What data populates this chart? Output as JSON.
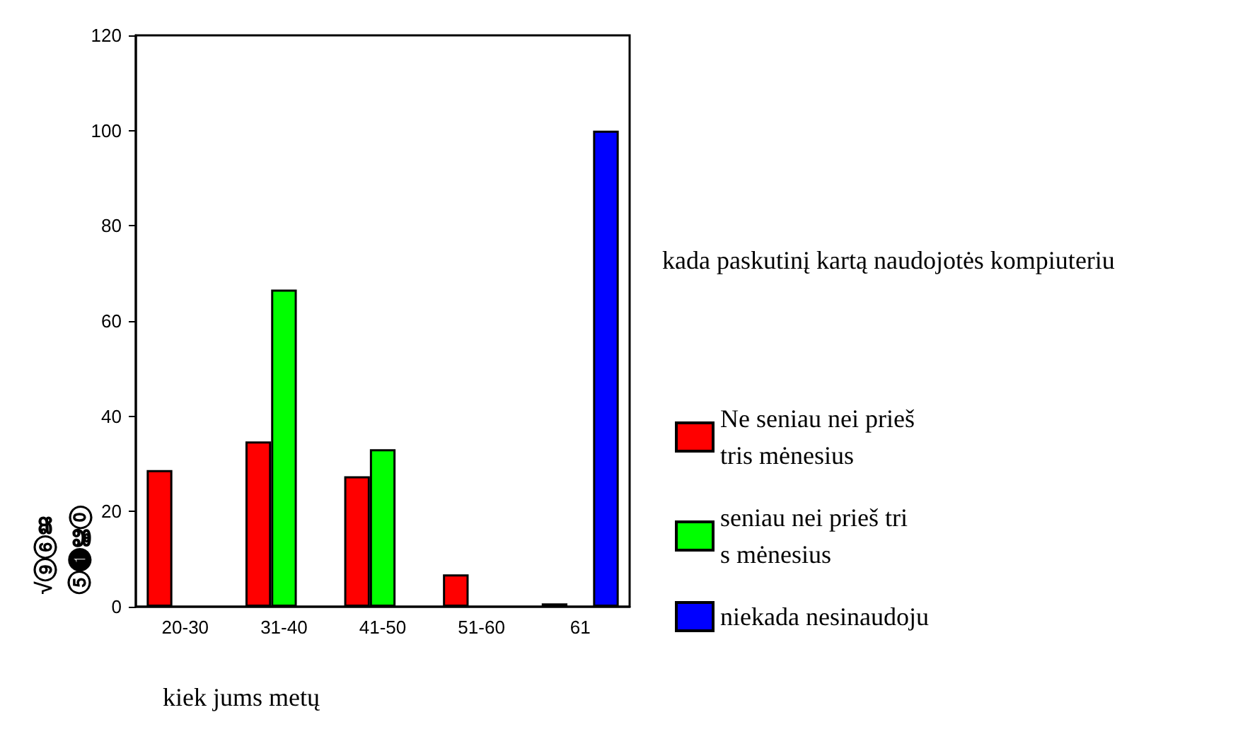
{
  "chart_data": {
    "type": "bar",
    "xlabel": "kiek jums metų",
    "ylabel": "√⑨⑥ജ\n⑤❶ൠ⓪",
    "legend_title": "kada paskutinį kartą naudojotės kompiuteriu",
    "categories": [
      "20-30",
      "31-40",
      "41-50",
      "51-60",
      "61"
    ],
    "series": [
      {
        "name": "Ne seniau nei prieš\ntris mėnesius",
        "color": "#ff0000",
        "values": [
          28.7,
          34.7,
          27.4,
          6.8,
          0.7
        ]
      },
      {
        "name": "seniau nei prieš tri\ns mėnesius",
        "color": "#00ff00",
        "values": [
          null,
          66.6,
          33.1,
          null,
          null
        ]
      },
      {
        "name": "niekada nesinaudoju",
        "color": "#0000ff",
        "values": [
          null,
          null,
          null,
          null,
          100
        ]
      }
    ],
    "ylim": [
      0,
      120
    ],
    "yticks": [
      0,
      20,
      40,
      60,
      80,
      100,
      120
    ],
    "grid": false,
    "legend": "right"
  }
}
